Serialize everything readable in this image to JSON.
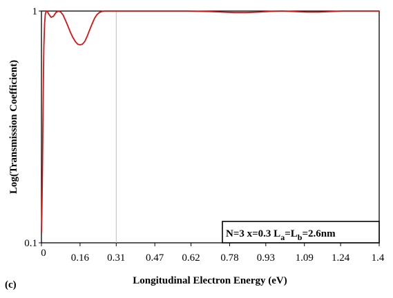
{
  "chart_data": {
    "type": "line",
    "xlabel": "Longitudinal Electron Energy (eV)",
    "ylabel": "Log(Transmission Coefficient)",
    "panel_label": "(c)",
    "y_scale": "log",
    "ylim": [
      0.1,
      1
    ],
    "xlim": [
      0,
      1.4
    ],
    "x_ticks": [
      "0",
      "0.16",
      "0.31",
      "0.47",
      "0.62",
      "0.78",
      "0.93",
      "1.09",
      "1.24",
      "1.4"
    ],
    "y_ticks": [
      "0.1",
      "1"
    ],
    "vertical_line_x": 0.31,
    "annotation": {
      "main": "N=3  x=0.3  L",
      "sub_a": "a",
      "eq": "=L",
      "sub_b": "b",
      "tail": "=2.6nm"
    },
    "line_color": "#dd1111",
    "series": [
      {
        "x": [
          0.0,
          0.002,
          0.004,
          0.006,
          0.008,
          0.01,
          0.013,
          0.016,
          0.02,
          0.025,
          0.03,
          0.04,
          0.05,
          0.06,
          0.07,
          0.08,
          0.09,
          0.1,
          0.11,
          0.12,
          0.13,
          0.14,
          0.15,
          0.16,
          0.17,
          0.18,
          0.19,
          0.2,
          0.21,
          0.22,
          0.23,
          0.24,
          0.25,
          0.26,
          0.28,
          0.31,
          0.4,
          0.5,
          0.6,
          0.7,
          0.75,
          0.8,
          0.85,
          0.9,
          0.95,
          1.0,
          1.05,
          1.1,
          1.15,
          1.2,
          1.25,
          1.3,
          1.35,
          1.4
        ],
        "y": [
          0.11,
          0.14,
          0.2,
          0.32,
          0.5,
          0.7,
          0.88,
          0.97,
          1.0,
          0.995,
          0.97,
          0.94,
          0.95,
          0.985,
          1.0,
          0.99,
          0.96,
          0.91,
          0.86,
          0.81,
          0.77,
          0.74,
          0.72,
          0.715,
          0.72,
          0.74,
          0.78,
          0.83,
          0.88,
          0.93,
          0.965,
          0.985,
          0.995,
          1.0,
          1.0,
          1.0,
          1.0,
          1.0,
          1.0,
          0.995,
          0.99,
          0.985,
          0.985,
          0.99,
          0.997,
          1.0,
          0.995,
          0.99,
          0.99,
          0.995,
          1.0,
          1.0,
          1.0,
          1.0
        ]
      }
    ]
  }
}
